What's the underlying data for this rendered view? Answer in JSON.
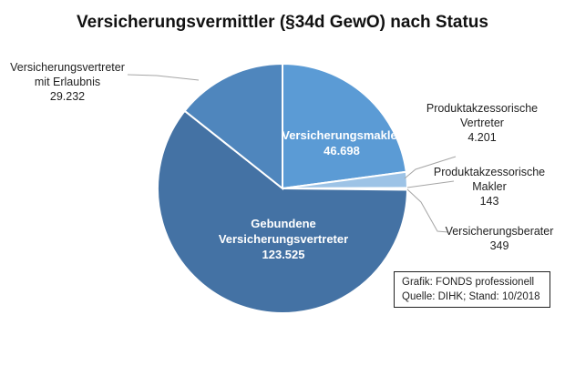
{
  "chart_data": {
    "type": "pie",
    "title": "Versicherungsvermittler  (§34d GewO) nach Status",
    "slices": [
      {
        "label": [
          "Versicherungsmakler"
        ],
        "value": 46698,
        "value_text": "46.698",
        "color": "#5b9bd5"
      },
      {
        "label": [
          "Produktakzessorische",
          "Vertreter"
        ],
        "value": 4201,
        "value_text": "4.201",
        "color": "#9dc3e6"
      },
      {
        "label": [
          "Produktakzessorische",
          "Makler"
        ],
        "value": 143,
        "value_text": "143",
        "color": "#bdd7ee"
      },
      {
        "label": [
          "Versicherungsberater"
        ],
        "value": 349,
        "value_text": "349",
        "color": "#a9c4e4"
      },
      {
        "label": [
          "Gebundene",
          "Versicherungsvertreter"
        ],
        "value": 123525,
        "value_text": "123.525",
        "color": "#4472a4"
      },
      {
        "label": [
          "Versicherungsvertreter",
          "mit Erlaubnis"
        ],
        "value": 29232,
        "value_text": "29.232",
        "color": "#4f86bd"
      }
    ]
  },
  "source_box": {
    "line1": "Grafik: FONDS professionell",
    "line2": "Quelle: DIHK; Stand: 10/2018"
  }
}
